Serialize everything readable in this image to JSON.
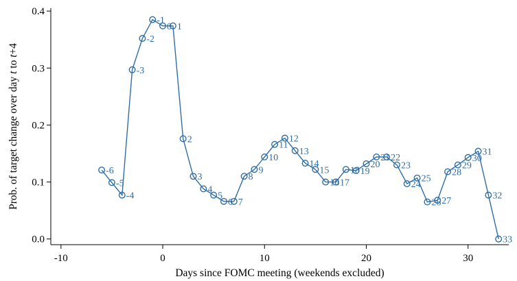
{
  "chart_data": {
    "type": "line",
    "title": "",
    "xlabel": "Days since FOMC meeting (weekends excluded)",
    "ylabel_parts": [
      "Prob. of target change over day ",
      "t",
      " to ",
      "t",
      "+4"
    ],
    "xlim": [
      -11,
      34
    ],
    "ylim": [
      -0.01,
      0.405
    ],
    "xticks": [
      -10,
      0,
      10,
      20,
      30
    ],
    "xtick_labels": [
      "-10",
      "0",
      "10",
      "20",
      "30"
    ],
    "yticks": [
      0,
      0.1,
      0.2,
      0.3,
      0.4
    ],
    "ytick_labels": [
      "0.0",
      "0.1",
      "0.2",
      "0.3",
      "0.4"
    ],
    "color": "#2e6da4",
    "grid": false,
    "legend": "none",
    "points": [
      {
        "x": -6,
        "y": 0.121,
        "label": "-6"
      },
      {
        "x": -5,
        "y": 0.099,
        "label": "-5"
      },
      {
        "x": -4,
        "y": 0.077,
        "label": "-4"
      },
      {
        "x": -3,
        "y": 0.297,
        "label": "-3"
      },
      {
        "x": -2,
        "y": 0.352,
        "label": "-2"
      },
      {
        "x": -1,
        "y": 0.385,
        "label": "-1"
      },
      {
        "x": 0,
        "y": 0.374,
        "label": "0"
      },
      {
        "x": 1,
        "y": 0.374,
        "label": "1"
      },
      {
        "x": 2,
        "y": 0.176,
        "label": "2"
      },
      {
        "x": 3,
        "y": 0.11,
        "label": "3"
      },
      {
        "x": 4,
        "y": 0.088,
        "label": "4"
      },
      {
        "x": 5,
        "y": 0.077,
        "label": "5"
      },
      {
        "x": 6,
        "y": 0.066,
        "label": "6"
      },
      {
        "x": 7,
        "y": 0.066,
        "label": "7"
      },
      {
        "x": 8,
        "y": 0.11,
        "label": "8"
      },
      {
        "x": 9,
        "y": 0.122,
        "label": "9"
      },
      {
        "x": 10,
        "y": 0.144,
        "label": "10"
      },
      {
        "x": 11,
        "y": 0.166,
        "label": "11"
      },
      {
        "x": 12,
        "y": 0.177,
        "label": "12"
      },
      {
        "x": 13,
        "y": 0.155,
        "label": "13"
      },
      {
        "x": 14,
        "y": 0.133,
        "label": "14"
      },
      {
        "x": 15,
        "y": 0.122,
        "label": "15"
      },
      {
        "x": 16,
        "y": 0.1,
        "label": "16"
      },
      {
        "x": 17,
        "y": 0.1,
        "label": "17"
      },
      {
        "x": 18,
        "y": 0.122,
        "label": "18"
      },
      {
        "x": 19,
        "y": 0.12,
        "label": "19"
      },
      {
        "x": 20,
        "y": 0.132,
        "label": "20"
      },
      {
        "x": 21,
        "y": 0.144,
        "label": "21"
      },
      {
        "x": 22,
        "y": 0.144,
        "label": "22"
      },
      {
        "x": 23,
        "y": 0.13,
        "label": "23"
      },
      {
        "x": 24,
        "y": 0.097,
        "label": "24"
      },
      {
        "x": 25,
        "y": 0.107,
        "label": "25"
      },
      {
        "x": 26,
        "y": 0.065,
        "label": "26"
      },
      {
        "x": 27,
        "y": 0.068,
        "label": "27"
      },
      {
        "x": 28,
        "y": 0.118,
        "label": "28"
      },
      {
        "x": 29,
        "y": 0.13,
        "label": "29"
      },
      {
        "x": 30,
        "y": 0.143,
        "label": "30"
      },
      {
        "x": 31,
        "y": 0.154,
        "label": "31"
      },
      {
        "x": 32,
        "y": 0.077,
        "label": "32"
      },
      {
        "x": 33,
        "y": 0.0,
        "label": "33"
      }
    ]
  }
}
